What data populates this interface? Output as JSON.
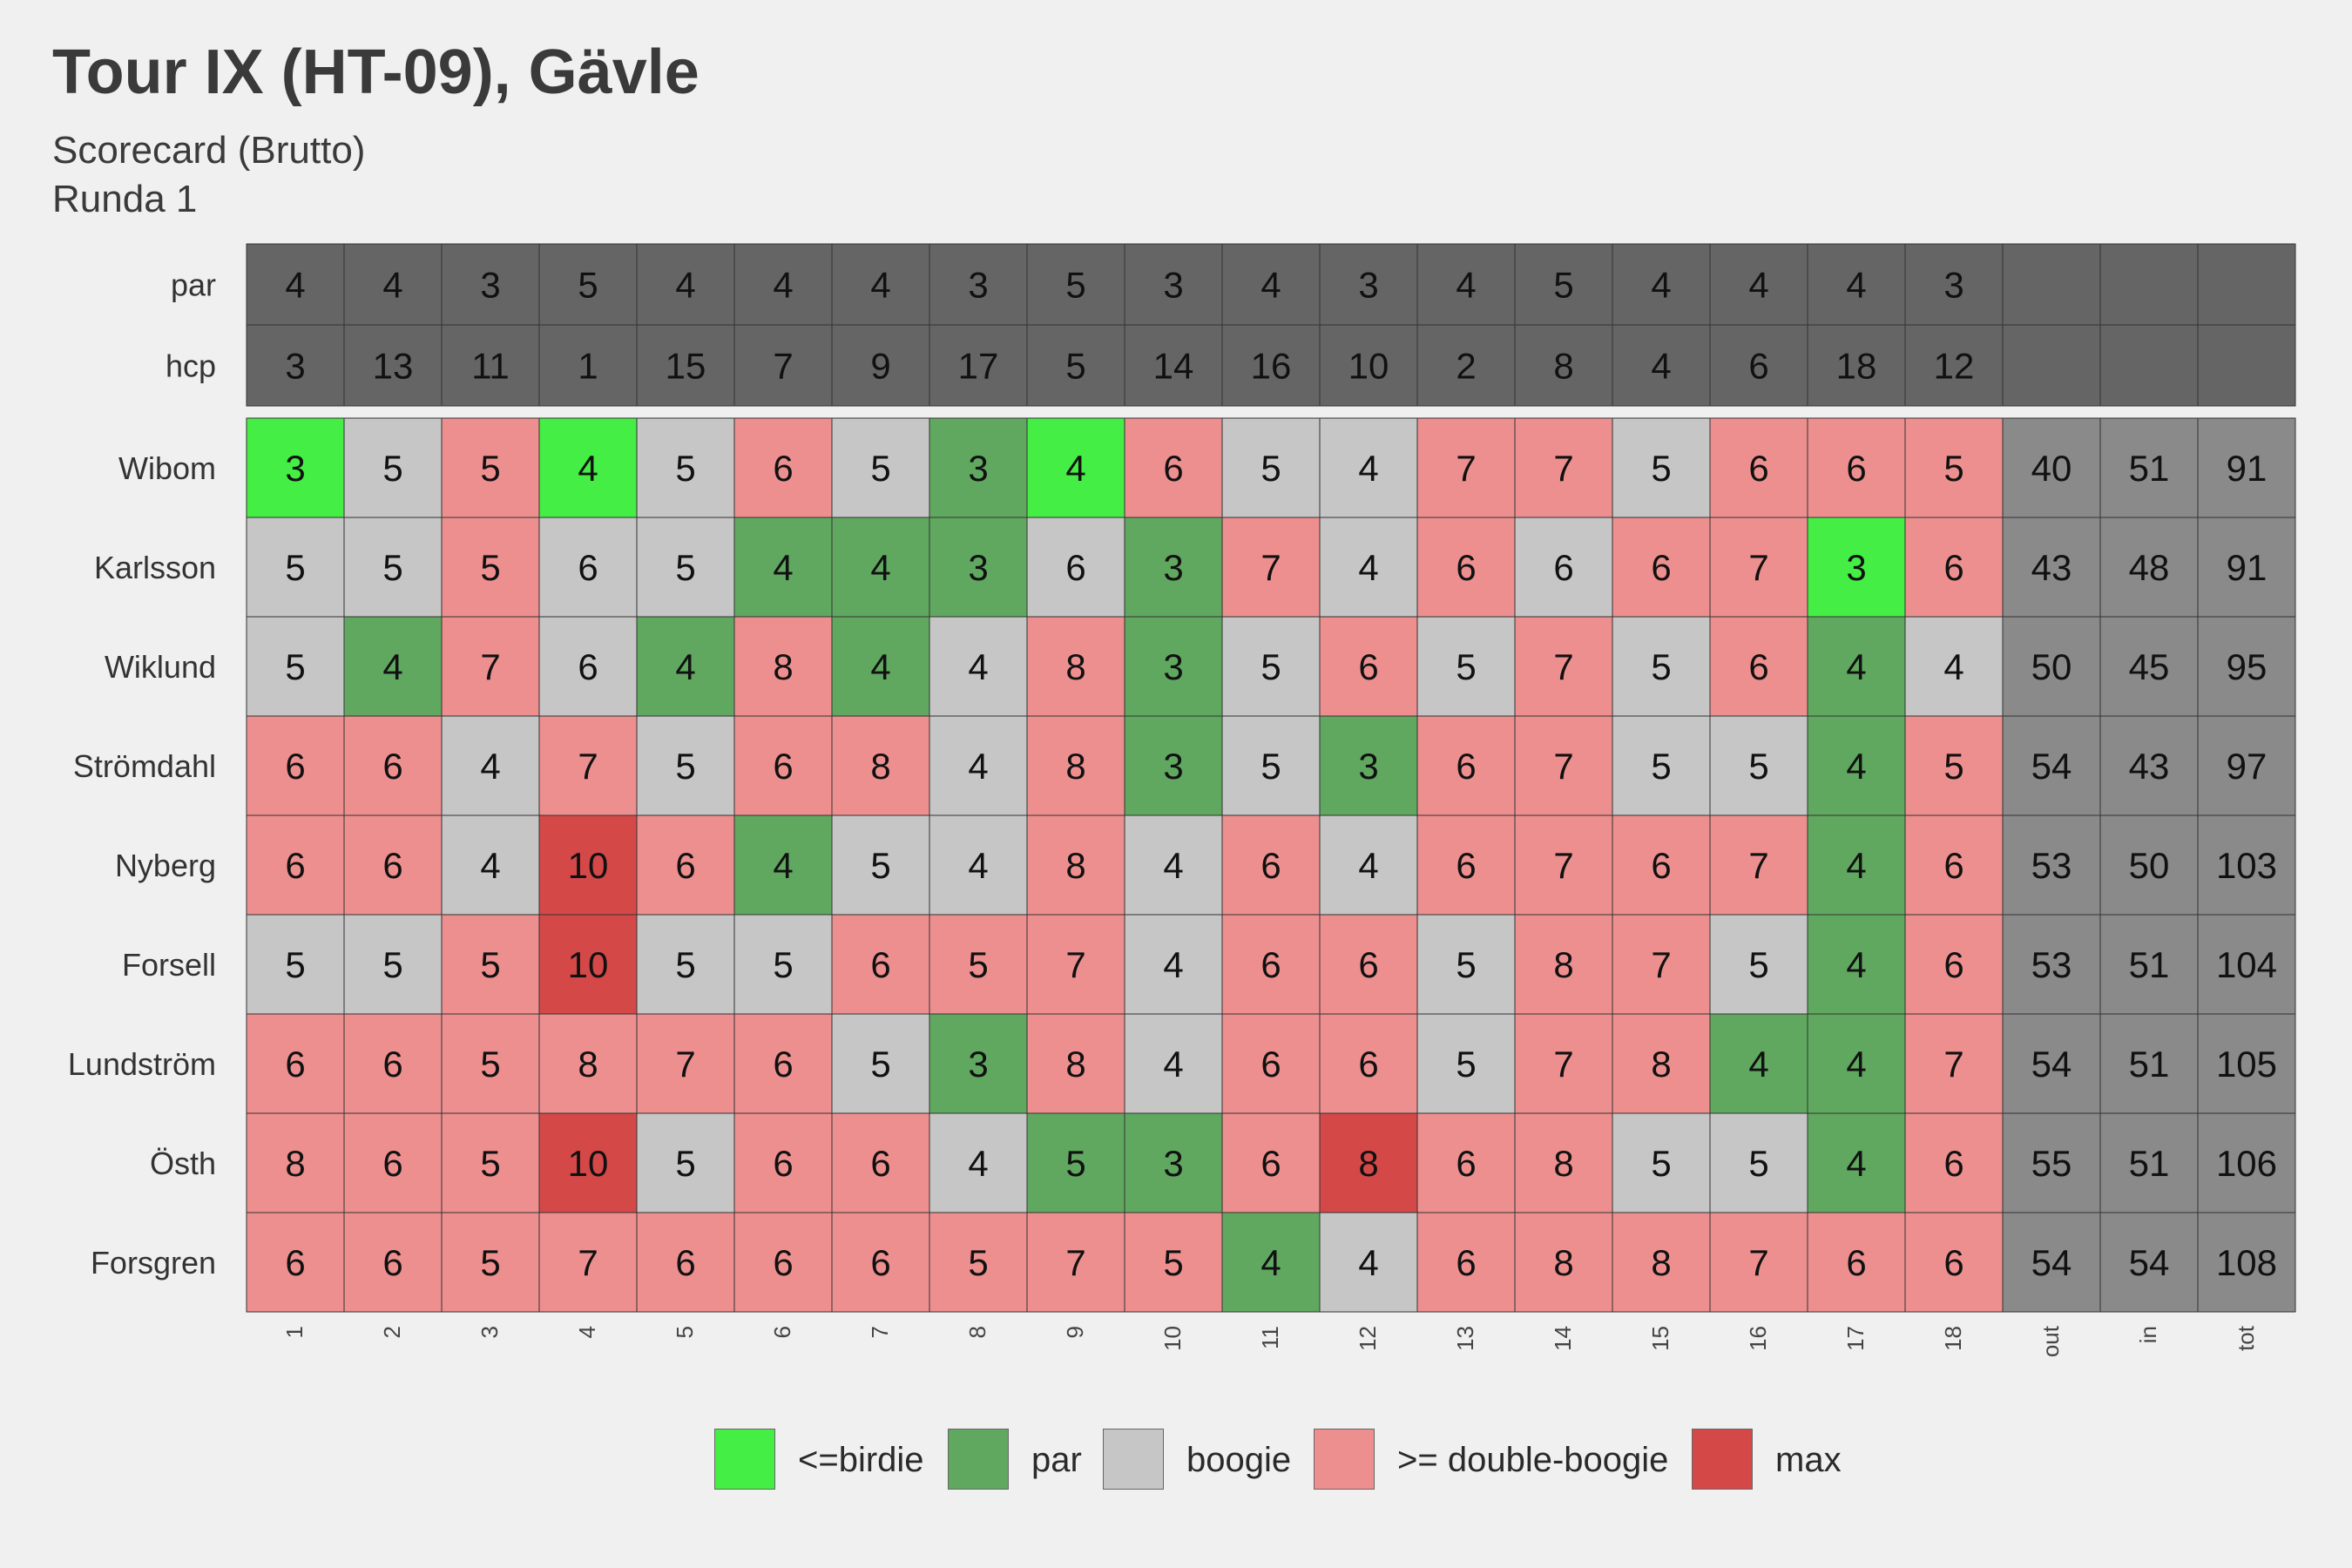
{
  "header": {
    "title": "Tour IX (HT-09), Gävle",
    "subtitle1": "Scorecard (Brutto)",
    "subtitle2": "Runda 1"
  },
  "chart_data": {
    "type": "heatmap",
    "columns": [
      "1",
      "2",
      "3",
      "4",
      "5",
      "6",
      "7",
      "8",
      "9",
      "10",
      "11",
      "12",
      "13",
      "14",
      "15",
      "16",
      "17",
      "18",
      "out",
      "in",
      "tot"
    ],
    "header_rows": [
      {
        "label": "par",
        "values": [
          4,
          4,
          3,
          5,
          4,
          4,
          4,
          3,
          5,
          3,
          4,
          3,
          4,
          5,
          4,
          4,
          4,
          3
        ]
      },
      {
        "label": "hcp",
        "values": [
          3,
          13,
          11,
          1,
          15,
          7,
          9,
          17,
          5,
          14,
          16,
          10,
          2,
          8,
          4,
          6,
          18,
          12
        ]
      }
    ],
    "players": [
      {
        "name": "Wibom",
        "scores": [
          3,
          5,
          5,
          4,
          5,
          6,
          5,
          3,
          4,
          6,
          5,
          4,
          7,
          7,
          5,
          6,
          6,
          5
        ],
        "out": 40,
        "in": 51,
        "tot": 91,
        "categories": [
          "birdie",
          "bogey",
          "dbl",
          "birdie",
          "bogey",
          "dbl",
          "bogey",
          "par",
          "birdie",
          "dbl",
          "bogey",
          "bogey",
          "dbl",
          "dbl",
          "bogey",
          "dbl",
          "dbl",
          "dbl"
        ]
      },
      {
        "name": "Karlsson",
        "scores": [
          5,
          5,
          5,
          6,
          5,
          4,
          4,
          3,
          6,
          3,
          7,
          4,
          6,
          6,
          6,
          7,
          3,
          6
        ],
        "out": 43,
        "in": 48,
        "tot": 91,
        "categories": [
          "bogey",
          "bogey",
          "dbl",
          "bogey",
          "bogey",
          "par",
          "par",
          "par",
          "bogey",
          "par",
          "dbl",
          "bogey",
          "dbl",
          "bogey",
          "dbl",
          "dbl",
          "birdie",
          "dbl"
        ]
      },
      {
        "name": "Wiklund",
        "scores": [
          5,
          4,
          7,
          6,
          4,
          8,
          4,
          4,
          8,
          3,
          5,
          6,
          5,
          7,
          5,
          6,
          4,
          4
        ],
        "out": 50,
        "in": 45,
        "tot": 95,
        "categories": [
          "bogey",
          "par",
          "dbl",
          "bogey",
          "par",
          "dbl",
          "par",
          "bogey",
          "dbl",
          "par",
          "bogey",
          "dbl",
          "bogey",
          "dbl",
          "bogey",
          "dbl",
          "par",
          "bogey"
        ]
      },
      {
        "name": "Strömdahl",
        "scores": [
          6,
          6,
          4,
          7,
          5,
          6,
          8,
          4,
          8,
          3,
          5,
          3,
          6,
          7,
          5,
          5,
          4,
          5
        ],
        "out": 54,
        "in": 43,
        "tot": 97,
        "categories": [
          "dbl",
          "dbl",
          "bogey",
          "dbl",
          "bogey",
          "dbl",
          "dbl",
          "bogey",
          "dbl",
          "par",
          "bogey",
          "par",
          "dbl",
          "dbl",
          "bogey",
          "bogey",
          "par",
          "dbl"
        ]
      },
      {
        "name": "Nyberg",
        "scores": [
          6,
          6,
          4,
          10,
          6,
          4,
          5,
          4,
          8,
          4,
          6,
          4,
          6,
          7,
          6,
          7,
          4,
          6
        ],
        "out": 53,
        "in": 50,
        "tot": 103,
        "categories": [
          "dbl",
          "dbl",
          "bogey",
          "max",
          "dbl",
          "par",
          "bogey",
          "bogey",
          "dbl",
          "bogey",
          "dbl",
          "bogey",
          "dbl",
          "dbl",
          "dbl",
          "dbl",
          "par",
          "dbl"
        ]
      },
      {
        "name": "Forsell",
        "scores": [
          5,
          5,
          5,
          10,
          5,
          5,
          6,
          5,
          7,
          4,
          6,
          6,
          5,
          8,
          7,
          5,
          4,
          6
        ],
        "out": 53,
        "in": 51,
        "tot": 104,
        "categories": [
          "bogey",
          "bogey",
          "dbl",
          "max",
          "bogey",
          "bogey",
          "dbl",
          "dbl",
          "dbl",
          "bogey",
          "dbl",
          "dbl",
          "bogey",
          "dbl",
          "dbl",
          "bogey",
          "par",
          "dbl"
        ]
      },
      {
        "name": "Lundström",
        "scores": [
          6,
          6,
          5,
          8,
          7,
          6,
          5,
          3,
          8,
          4,
          6,
          6,
          5,
          7,
          8,
          4,
          4,
          7
        ],
        "out": 54,
        "in": 51,
        "tot": 105,
        "categories": [
          "dbl",
          "dbl",
          "dbl",
          "dbl",
          "dbl",
          "dbl",
          "bogey",
          "par",
          "dbl",
          "bogey",
          "dbl",
          "dbl",
          "bogey",
          "dbl",
          "dbl",
          "par",
          "par",
          "dbl"
        ]
      },
      {
        "name": "Östh",
        "scores": [
          8,
          6,
          5,
          10,
          5,
          6,
          6,
          4,
          5,
          3,
          6,
          8,
          6,
          8,
          5,
          5,
          4,
          6
        ],
        "out": 55,
        "in": 51,
        "tot": 106,
        "categories": [
          "dbl",
          "dbl",
          "dbl",
          "max",
          "bogey",
          "dbl",
          "dbl",
          "bogey",
          "par",
          "par",
          "dbl",
          "max",
          "dbl",
          "dbl",
          "bogey",
          "bogey",
          "par",
          "dbl"
        ]
      },
      {
        "name": "Forsgren",
        "scores": [
          6,
          6,
          5,
          7,
          6,
          6,
          6,
          5,
          7,
          5,
          4,
          4,
          6,
          8,
          8,
          7,
          6,
          6
        ],
        "out": 54,
        "in": 54,
        "tot": 108,
        "categories": [
          "dbl",
          "dbl",
          "dbl",
          "dbl",
          "dbl",
          "dbl",
          "dbl",
          "dbl",
          "dbl",
          "dbl",
          "par",
          "bogey",
          "dbl",
          "dbl",
          "dbl",
          "dbl",
          "dbl",
          "dbl"
        ]
      }
    ],
    "legend": [
      {
        "key": "birdie",
        "label": "<=birdie",
        "color": "#44ee44"
      },
      {
        "key": "par",
        "label": "par",
        "color": "#60a860"
      },
      {
        "key": "bogey",
        "label": "boogie",
        "color": "#c6c6c6"
      },
      {
        "key": "dbl",
        "label": ">= double-boogie",
        "color": "#ee8f8f"
      },
      {
        "key": "max",
        "label": "max",
        "color": "#d44848"
      }
    ],
    "colors": {
      "header_cell": "#656565",
      "total_cell": "#8a8a8a",
      "background": "#f0f0f0",
      "grid_line": "#333333"
    },
    "legend_position": "bottom"
  }
}
